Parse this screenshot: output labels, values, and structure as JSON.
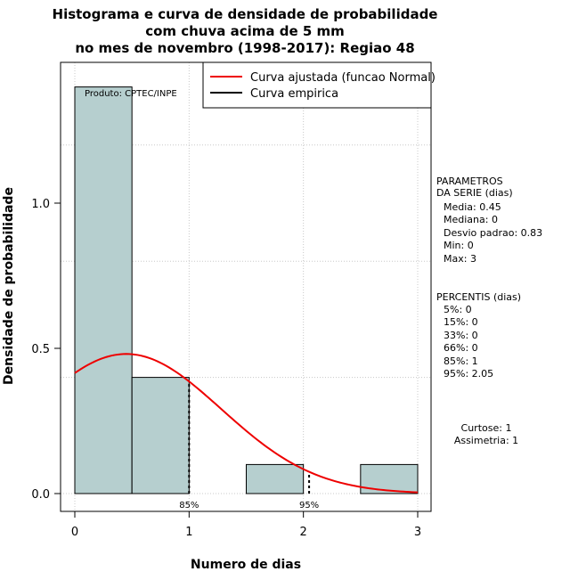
{
  "chart_data": {
    "type": "bar",
    "title": [
      "Histograma e curva de densidade de probabilidade",
      "com chuva acima de 5 mm",
      "no mes de novembro (1998-2017): Regiao 48"
    ],
    "xlabel": "Numero de dias",
    "ylabel": "Densidade de probabilidade",
    "xlim": [
      -0.2,
      3.2
    ],
    "ylim": [
      -0.06,
      1.48
    ],
    "x_ticks": [
      0,
      1,
      2,
      3
    ],
    "x_tick_labels": [
      "0",
      "1",
      "2",
      "3"
    ],
    "y_ticks": [
      0.0,
      0.5,
      1.0
    ],
    "y_tick_labels": [
      "0.0",
      "0.5",
      "1.0"
    ],
    "grid": true,
    "histogram": [
      {
        "x0": 0.0,
        "x1": 0.5,
        "density": 1.4
      },
      {
        "x0": 0.5,
        "x1": 1.0,
        "density": 0.4
      },
      {
        "x0": 1.0,
        "x1": 1.5,
        "density": 0.0
      },
      {
        "x0": 1.5,
        "x1": 2.0,
        "density": 0.1
      },
      {
        "x0": 2.0,
        "x1": 2.5,
        "density": 0.0
      },
      {
        "x0": 2.5,
        "x1": 3.0,
        "density": 0.1
      }
    ],
    "normal_fit": {
      "mean": 0.45,
      "sd": 0.83,
      "x_range": [
        0,
        3
      ]
    },
    "percentile_markers": [
      {
        "x": 1.0,
        "label": "85%"
      },
      {
        "x": 2.05,
        "label": "95%"
      }
    ],
    "legend": {
      "position": "top-right",
      "entries": [
        {
          "label": "Curva ajustada (funcao Normal)",
          "color": "#ee0000"
        },
        {
          "label": "Curva empirica",
          "color": "#000000"
        }
      ]
    },
    "annotation": "Produto: CPTEC/INPE",
    "colors": {
      "bar_fill": "#b6cfcf",
      "curve": "#ee0000",
      "grid": "#c8c8c8"
    }
  },
  "side_panel": {
    "params_title": [
      "PARAMETROS",
      "DA SERIE (dias)"
    ],
    "params": [
      "Media: 0.45",
      "Mediana: 0",
      "Desvio padrao: 0.83",
      "Min: 0",
      "Max: 3"
    ],
    "perc_title": "PERCENTIS (dias)",
    "percentiles": [
      "5%: 0",
      "15%: 0",
      "33%: 0",
      "66%: 0",
      "85%: 1",
      "95%: 2.05"
    ],
    "shape": [
      "Curtose: 1",
      "Assimetria: 1"
    ]
  }
}
